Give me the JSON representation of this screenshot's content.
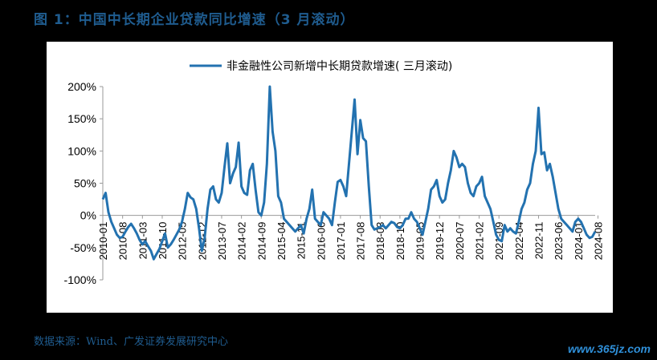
{
  "figure": {
    "title": "图 1：中国中长期企业贷款同比增速（3 月滚动）",
    "source": "数据来源：Wind、广发证券发展研究中心",
    "watermark": "www.365jz.com"
  },
  "chart_data": {
    "type": "line",
    "title": "",
    "xlabel": "",
    "ylabel": "",
    "ylim": [
      -100,
      200
    ],
    "yticks": [
      "200%",
      "150%",
      "100%",
      "50%",
      "0%",
      "-50%",
      "-100%"
    ],
    "grid": false,
    "legend_position": "top",
    "line_color": "#2372b0",
    "xtick_labels": [
      "2010-01",
      "2010-08",
      "2011-03",
      "2011-10",
      "2012-05",
      "2012-12",
      "2013-07",
      "2014-02",
      "2014-09",
      "2015-04",
      "2015-11",
      "2016-06",
      "2017-01",
      "2017-08",
      "2018-03",
      "2018-10",
      "2019-05",
      "2019-12",
      "2020-07",
      "2021-02",
      "2021-09",
      "2022-04",
      "2022-11",
      "2023-06",
      "2024-01",
      "2024-08"
    ],
    "series": [
      {
        "name": "非金融性公司新增中长期贷款增速( 三月滚动)",
        "start": "2010-01",
        "freq": "monthly",
        "values": [
          25,
          35,
          5,
          -10,
          -20,
          -30,
          -35,
          -33,
          -25,
          -18,
          -13,
          -20,
          -28,
          -38,
          -45,
          -40,
          -48,
          -55,
          -68,
          -60,
          -52,
          -40,
          -28,
          -50,
          -45,
          -38,
          -30,
          -22,
          -10,
          10,
          35,
          28,
          25,
          10,
          -20,
          -55,
          -35,
          10,
          40,
          45,
          25,
          20,
          35,
          75,
          112,
          50,
          65,
          75,
          113,
          45,
          35,
          32,
          70,
          80,
          40,
          5,
          0,
          20,
          80,
          200,
          130,
          100,
          30,
          20,
          -5,
          -10,
          -15,
          -20,
          -25,
          -20,
          -15,
          -28,
          -5,
          10,
          40,
          -5,
          -10,
          -15,
          5,
          0,
          -5,
          -15,
          20,
          52,
          55,
          45,
          30,
          80,
          130,
          180,
          95,
          148,
          120,
          115,
          45,
          -15,
          -22,
          -20,
          -18,
          -15,
          -20,
          -15,
          -10,
          -12,
          -18,
          -20,
          -15,
          -5,
          -5,
          5,
          -5,
          -10,
          -20,
          -30,
          -10,
          10,
          40,
          45,
          55,
          30,
          20,
          25,
          50,
          70,
          100,
          90,
          75,
          80,
          75,
          50,
          35,
          30,
          45,
          50,
          60,
          30,
          20,
          10,
          -10,
          -30,
          -38,
          -40,
          -15,
          -25,
          -20,
          -25,
          -28,
          -10,
          10,
          20,
          40,
          50,
          80,
          100,
          167,
          95,
          98,
          70,
          80,
          60,
          35,
          10,
          -5,
          -10,
          -15,
          -20,
          -25,
          -10,
          -5,
          -10,
          -20,
          -30,
          -35,
          -33,
          -25
        ]
      }
    ]
  }
}
